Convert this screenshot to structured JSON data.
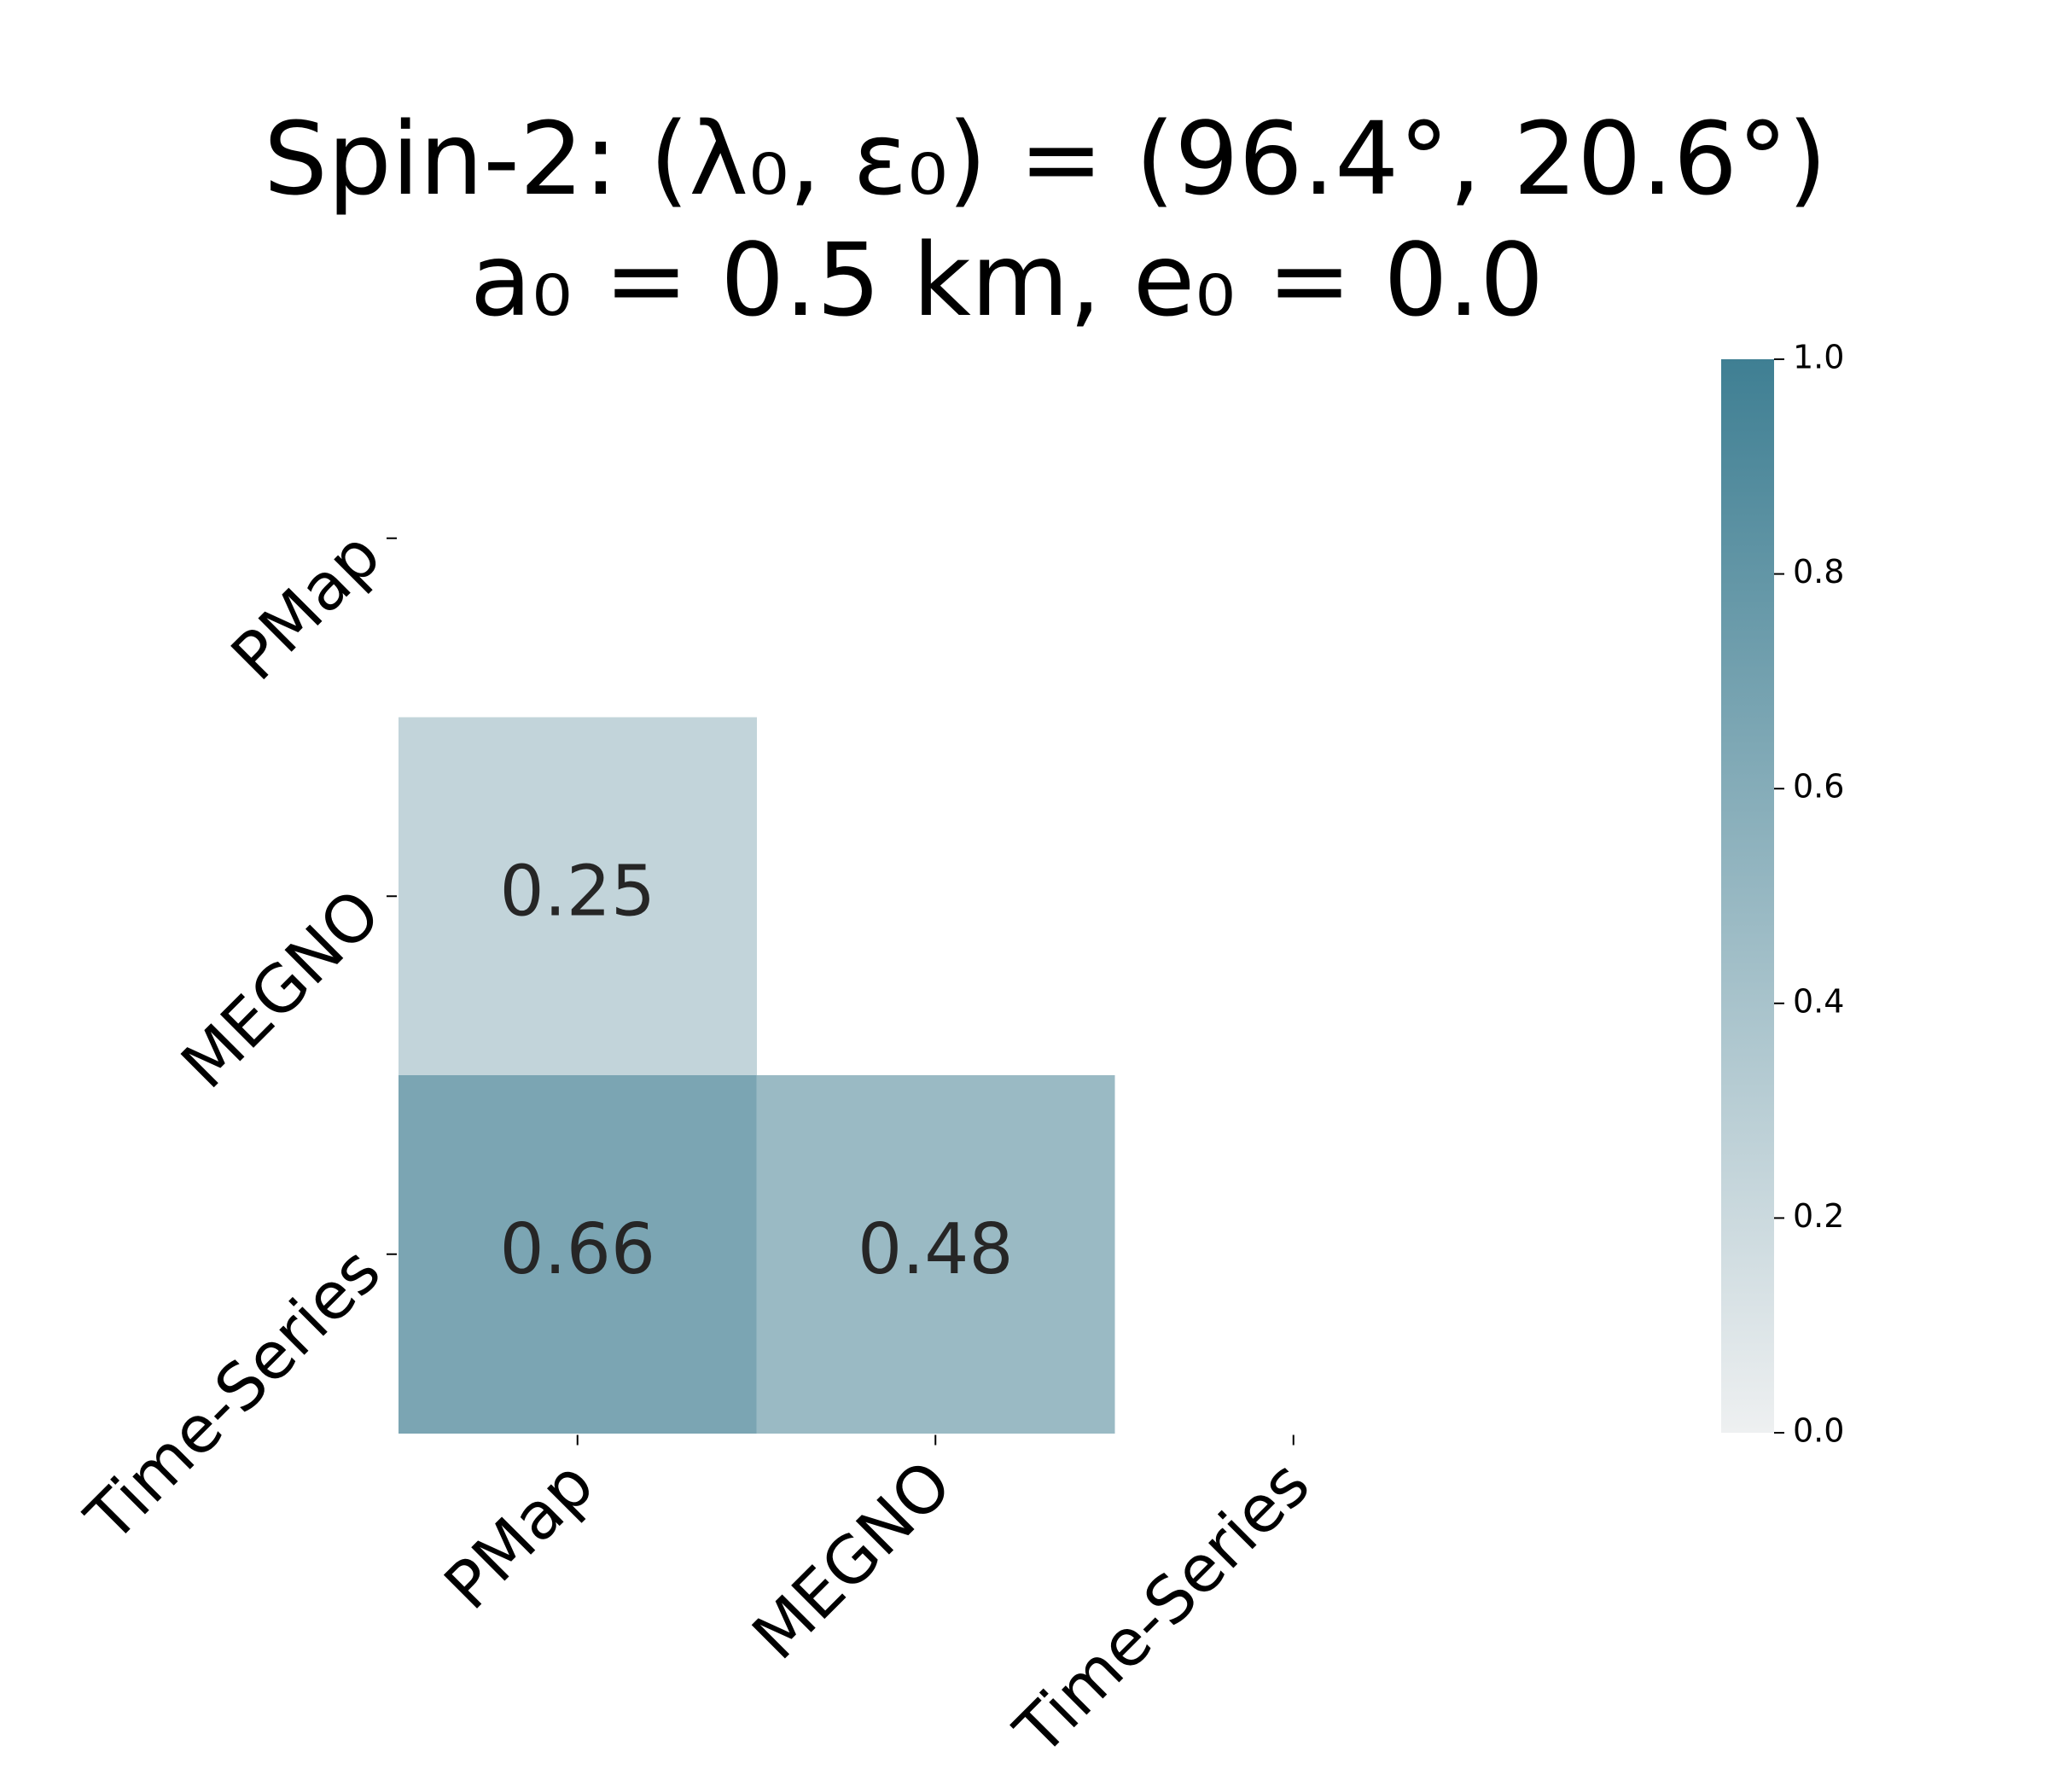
{
  "chart_data": {
    "type": "heatmap",
    "title": [
      "Spin-2: (λ₀, ε₀) = (96.4°, 20.6°)",
      "a₀ = 0.5 km, e₀ = 0.0"
    ],
    "x_categories": [
      "PMap",
      "MEGNO",
      "Time-Series"
    ],
    "y_categories": [
      "PMap",
      "MEGNO",
      "Time-Series"
    ],
    "values": [
      [
        null,
        null,
        null
      ],
      [
        0.25,
        null,
        null
      ],
      [
        0.66,
        0.48,
        null
      ]
    ],
    "cmap": [
      "#eef0f1",
      "#3f7f93"
    ],
    "zlim": [
      0,
      1
    ],
    "zticks": [
      {
        "value": 0,
        "label": "0.0"
      },
      0.2,
      0.4,
      0.6,
      0.8,
      {
        "value": 1,
        "label": "1.0"
      }
    ]
  }
}
